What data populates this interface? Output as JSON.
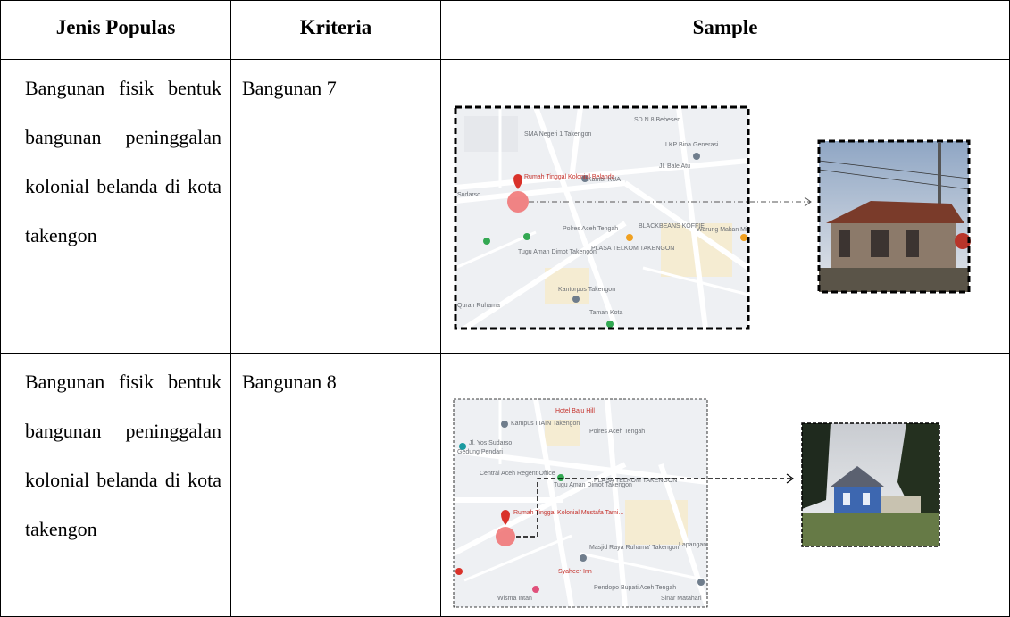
{
  "table": {
    "headers": [
      "Jenis Populas",
      "Kriteria",
      "Sample"
    ],
    "rows": [
      {
        "population": "Bangunan fisik bentuk bangunan peninggalan kolonial belanda di kota takengon",
        "criteria": "Bangunan 7",
        "map_labels": [
          "SD N 8 Bebesen",
          "SMA Negeri 1 Takengon",
          "LKP Bina Generasi",
          "Rumah Tinggal Kolonial Belanda",
          "Kantor KUA",
          "Jl. Bale Atu",
          "Sudarso",
          "Polres Aceh Tengah",
          "BLACKBEANS KOFFIE",
          "Warung Makan Mie",
          "Tugu Aman Dimot Takengon",
          "PLASA TELKOM TAKENGON",
          "Kantorpos Takengon",
          "Taman Kota",
          "Quran Ruhama"
        ]
      },
      {
        "population": "Bangunan fisik bentuk bangunan peninggalan kolonial belanda di kota takengon",
        "criteria": "Bangunan 8",
        "map_labels": [
          "Hotel Baju Hill",
          "Kampus I IAIN Takengon",
          "Jl. Yos Sudarso",
          "Gedung Pendari",
          "Polres Aceh Tengah",
          "Central Aceh Regent Office",
          "Tugu Aman Dimot Takengon",
          "PLASA TELKOM TAKENGON",
          "Rumah Tinggal Kolonial Mustafa Tami...",
          "Masjid Raya Ruhama' Takengon",
          "Lapangan",
          "Syaheer Inn",
          "Pendopo Bupati Aceh Tengah",
          "Wisma Intan",
          "Sinar Matahari"
        ]
      }
    ]
  }
}
